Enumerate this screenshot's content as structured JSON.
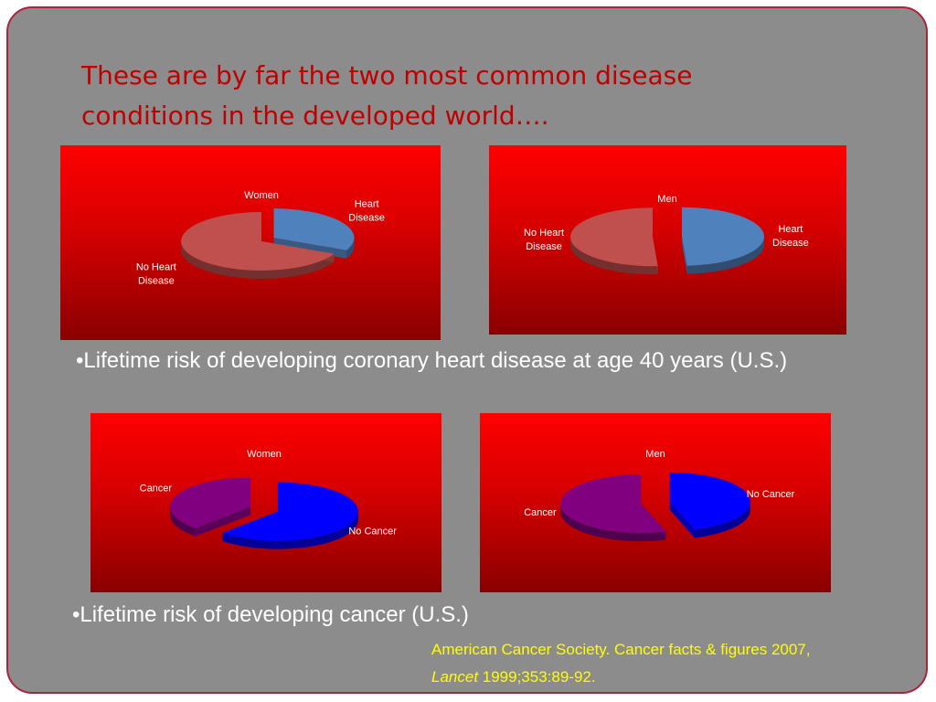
{
  "slide": {
    "title_lines": [
      "These are by far the two most common disease",
      "conditions in the developed world…."
    ],
    "bullet_heart": "•Lifetime risk of developing coronary heart disease at age 40 years (U.S.)",
    "bullet_cancer": "•Lifetime risk of developing cancer (U.S.)",
    "citation": {
      "line1": "American Cancer Society. Cancer facts & figures 2007,",
      "journal": "Lancet",
      "rest": " 1999;353:89-92."
    }
  },
  "colors": {
    "heart": "#4f81bd",
    "no_heart": "#c0504d",
    "cancer": "#800080",
    "no_cancer": "#0000ff",
    "label": "#ffffff"
  },
  "chart_data": [
    {
      "type": "pie",
      "title": "Women",
      "series": [
        {
          "name": "Heart Disease",
          "value": 32,
          "color": "#4f81bd",
          "exploded": true
        },
        {
          "name": "No Heart Disease",
          "value": 68,
          "color": "#c0504d",
          "exploded": false
        }
      ]
    },
    {
      "type": "pie",
      "title": "Men",
      "series": [
        {
          "name": "Heart Disease",
          "value": 49,
          "color": "#4f81bd",
          "exploded": true
        },
        {
          "name": "No Heart Disease",
          "value": 51,
          "color": "#c0504d",
          "exploded": true
        }
      ]
    },
    {
      "type": "pie",
      "title": "Women",
      "series": [
        {
          "name": "No Cancer",
          "value": 62,
          "color": "#0000ff",
          "exploded": true
        },
        {
          "name": "Cancer",
          "value": 38,
          "color": "#800080",
          "exploded": true
        }
      ]
    },
    {
      "type": "pie",
      "title": "Men",
      "series": [
        {
          "name": "No Cancer",
          "value": 45,
          "color": "#0000ff",
          "exploded": true
        },
        {
          "name": "Cancer",
          "value": 55,
          "color": "#800080",
          "exploded": true
        }
      ]
    }
  ]
}
